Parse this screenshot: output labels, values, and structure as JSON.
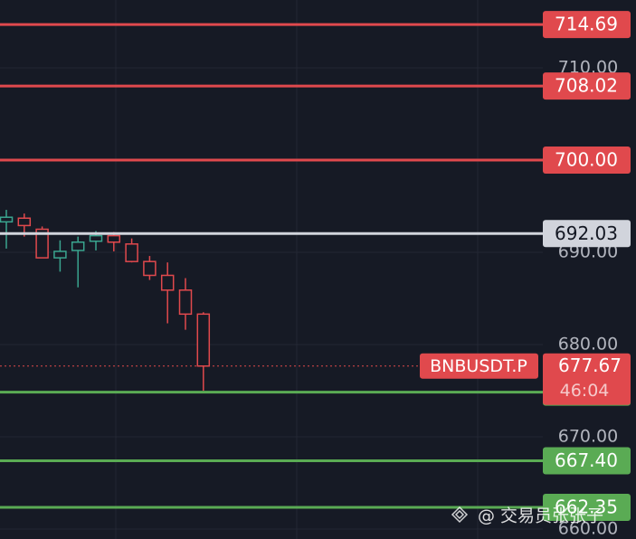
{
  "chart_data": {
    "type": "candlestick",
    "open": [
      693.3,
      693.7,
      692.5,
      689.4,
      690.2,
      691.2,
      691.8,
      690.9,
      689.0,
      687.5,
      685.9,
      683.3
    ],
    "high": [
      694.6,
      694.2,
      692.8,
      691.3,
      691.7,
      692.3,
      692.2,
      691.5,
      689.6,
      688.9,
      687.2,
      683.5
    ],
    "low": [
      690.4,
      691.7,
      689.4,
      687.9,
      686.2,
      690.2,
      690.1,
      688.9,
      687.0,
      682.3,
      681.6,
      675.0
    ],
    "close": [
      693.8,
      692.9,
      689.4,
      690.1,
      691.1,
      691.8,
      691.1,
      689.0,
      687.5,
      685.9,
      683.3,
      677.67
    ],
    "up_color": "#3aa58f",
    "down_color": "#e0494d",
    "ylim": [
      658.92,
      717.35
    ],
    "yticks": [
      {
        "value": 660,
        "label": "660.00"
      },
      {
        "value": 670,
        "label": "670.00"
      },
      {
        "value": 680,
        "label": "680.00"
      },
      {
        "value": 690,
        "label": "690.00"
      },
      {
        "value": 700,
        "label": "700.00"
      },
      {
        "value": 710,
        "label": "710.00"
      }
    ],
    "grid": true,
    "price_lines": [
      {
        "value": 714.69,
        "color": "#e0494d"
      },
      {
        "value": 708.02,
        "color": "#e0494d"
      },
      {
        "value": 700,
        "label": "700.00",
        "color": "#e0494d"
      },
      {
        "value": 692.03,
        "color": "#d1d4dc"
      },
      {
        "value": 674.84,
        "color": "#5aab54"
      },
      {
        "value": 667.4,
        "label": "667.40",
        "color": "#5aab54"
      },
      {
        "value": 662.35,
        "color": "#5aab54"
      }
    ],
    "current_price": {
      "symbol": "BNBUSDT.P",
      "value": 677.67,
      "countdown": "46:04",
      "color": "#e0494d"
    },
    "watermark": "@ 交易员张张子"
  }
}
